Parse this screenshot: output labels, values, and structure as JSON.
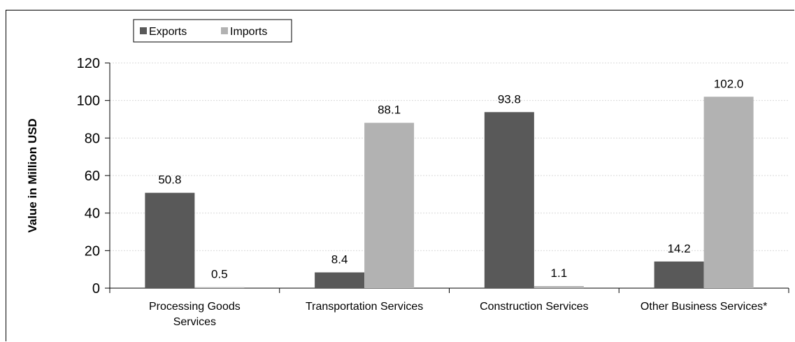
{
  "chart_data": {
    "type": "bar",
    "title": "",
    "ylabel": "Value in Million  USD",
    "xlabel": "",
    "ylim": [
      0,
      120
    ],
    "yticks": [
      0,
      20,
      40,
      60,
      80,
      100,
      120
    ],
    "grid": true,
    "legend_position": "top-left",
    "categories": [
      [
        "Processing Goods",
        "Services"
      ],
      [
        "Transportation Services"
      ],
      [
        "Construction Services"
      ],
      [
        "Other Business Services*"
      ]
    ],
    "series": [
      {
        "name": "Exports",
        "color": "#595959",
        "values": [
          50.8,
          8.4,
          93.8,
          14.2
        ],
        "labels": [
          "50.8",
          "8.4",
          "93.8",
          "14.2"
        ]
      },
      {
        "name": "Imports",
        "color": "#b2b2b2",
        "values": [
          0.5,
          88.1,
          1.1,
          102.0
        ],
        "labels": [
          "0.5",
          "88.1",
          "1.1",
          "102.0"
        ]
      }
    ]
  }
}
